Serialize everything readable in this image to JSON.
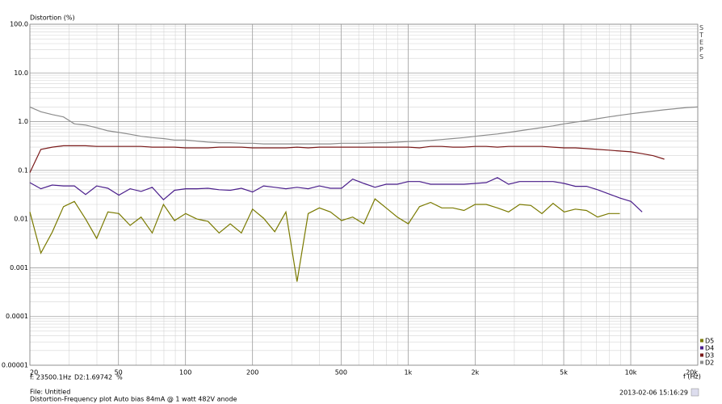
{
  "chart_data": {
    "type": "line",
    "y_label": "Distortion (%)",
    "x_label": "f (Hz)",
    "cursor_frequency": "f: 23500.1Hz",
    "cursor_value": "D2:1.69742  %",
    "file": "File: Untitled",
    "description": "Distortion-Frequency plot Auto bias 84mA @ 1 watt 482V anode",
    "timestamp": "2013-02-06 15:16:29",
    "side_label": "STEPS",
    "log_x": true,
    "log_y": true,
    "grid": true,
    "legend": "lower right",
    "xlim": [
      20,
      20000
    ],
    "ylim": [
      1e-05,
      100
    ],
    "xticks": [
      20,
      50,
      100,
      200,
      500,
      {
        "value": 1000,
        "label": "1k"
      },
      {
        "value": 2000,
        "label": "2k"
      },
      {
        "value": 5000,
        "label": "5k"
      },
      {
        "value": 10000,
        "label": "10k"
      },
      {
        "value": 20000,
        "label": "20k"
      }
    ],
    "yticks": [
      {
        "value": 100,
        "label": "100.0"
      },
      {
        "value": 10,
        "label": "10.0"
      },
      {
        "value": 1,
        "label": "1.0"
      },
      0.1,
      0.01,
      0.001,
      0.0001,
      1e-05
    ],
    "x": [
      20,
      22.4,
      25.2,
      28.3,
      31.7,
      35.6,
      39.9,
      44.8,
      50.2,
      56.4,
      63.2,
      70.9,
      79.6,
      89.3,
      100.2,
      112.5,
      126.2,
      141.6,
      158.9,
      178.3,
      200,
      224.4,
      251.8,
      282.5,
      317,
      355.7,
      399.1,
      447.7,
      502.4,
      563.7,
      632.5,
      709.6,
      796.2,
      893.4,
      1002.4,
      1124.7,
      1261.9,
      1415.9,
      1588.7,
      1782.5,
      2000,
      2244.1,
      2517.9,
      2825.1,
      3169.8,
      3556.6,
      3990.5,
      4477.4,
      5023.8,
      5636.8,
      6324.6,
      7096.3,
      7962.1,
      8933.7,
      10023.7,
      11246.8,
      12619,
      14158.9,
      15886.4,
      17825,
      20000
    ],
    "series": [
      {
        "name": "D2",
        "color": "#8c8c8c",
        "values": [
          2.0,
          1.6,
          1.4,
          1.25,
          0.9,
          0.85,
          0.75,
          0.65,
          0.6,
          0.55,
          0.5,
          0.47,
          0.45,
          0.42,
          0.42,
          0.4,
          0.38,
          0.37,
          0.37,
          0.36,
          0.36,
          0.35,
          0.35,
          0.35,
          0.35,
          0.35,
          0.35,
          0.35,
          0.36,
          0.36,
          0.36,
          0.37,
          0.37,
          0.38,
          0.39,
          0.4,
          0.41,
          0.43,
          0.45,
          0.47,
          0.5,
          0.53,
          0.56,
          0.6,
          0.65,
          0.7,
          0.76,
          0.82,
          0.9,
          0.98,
          1.05,
          1.15,
          1.25,
          1.35,
          1.45,
          1.55,
          1.65,
          1.75,
          1.85,
          1.95,
          2.0
        ]
      },
      {
        "name": "D3",
        "color": "#7a1a1a",
        "values": [
          0.09,
          0.27,
          0.3,
          0.32,
          0.32,
          0.32,
          0.31,
          0.31,
          0.31,
          0.31,
          0.31,
          0.3,
          0.3,
          0.3,
          0.29,
          0.29,
          0.29,
          0.3,
          0.3,
          0.3,
          0.29,
          0.29,
          0.29,
          0.29,
          0.3,
          0.29,
          0.3,
          0.3,
          0.3,
          0.3,
          0.3,
          0.3,
          0.3,
          0.3,
          0.3,
          0.29,
          0.31,
          0.31,
          0.3,
          0.3,
          0.31,
          0.31,
          0.3,
          0.31,
          0.31,
          0.31,
          0.31,
          0.3,
          0.29,
          0.29,
          0.28,
          0.27,
          0.26,
          0.25,
          0.24,
          0.22,
          0.2,
          0.17,
          null,
          null,
          null
        ]
      },
      {
        "name": "D4",
        "color": "#4b1f8c",
        "values": [
          0.056,
          0.042,
          0.05,
          0.048,
          0.048,
          0.032,
          0.048,
          0.043,
          0.031,
          0.042,
          0.037,
          0.045,
          0.025,
          0.039,
          0.042,
          0.042,
          0.043,
          0.04,
          0.039,
          0.043,
          0.036,
          0.048,
          0.045,
          0.042,
          0.045,
          0.042,
          0.048,
          0.043,
          0.043,
          0.066,
          0.054,
          0.045,
          0.052,
          0.052,
          0.059,
          0.059,
          0.052,
          0.052,
          0.052,
          0.052,
          0.054,
          0.056,
          0.071,
          0.052,
          0.059,
          0.059,
          0.059,
          0.059,
          0.054,
          0.047,
          0.047,
          0.04,
          0.033,
          0.027,
          0.023,
          0.014,
          null,
          null,
          null,
          null,
          null
        ]
      },
      {
        "name": "D5",
        "color": "#7a7a00",
        "values": [
          0.014,
          0.002,
          0.0054,
          0.018,
          0.023,
          0.01,
          0.004,
          0.014,
          0.013,
          0.0074,
          0.011,
          0.0052,
          0.02,
          0.0093,
          0.013,
          0.01,
          0.009,
          0.0052,
          0.008,
          0.0052,
          0.016,
          0.0104,
          0.0055,
          0.014,
          0.00052,
          0.013,
          0.017,
          0.014,
          0.0093,
          0.011,
          0.008,
          0.026,
          0.017,
          0.011,
          0.008,
          0.018,
          0.022,
          0.017,
          0.017,
          0.015,
          0.02,
          0.02,
          0.017,
          0.014,
          0.02,
          0.019,
          0.013,
          0.021,
          0.014,
          0.016,
          0.015,
          0.011,
          0.013,
          0.013,
          null,
          null,
          null,
          null,
          null,
          null,
          null
        ]
      }
    ]
  }
}
